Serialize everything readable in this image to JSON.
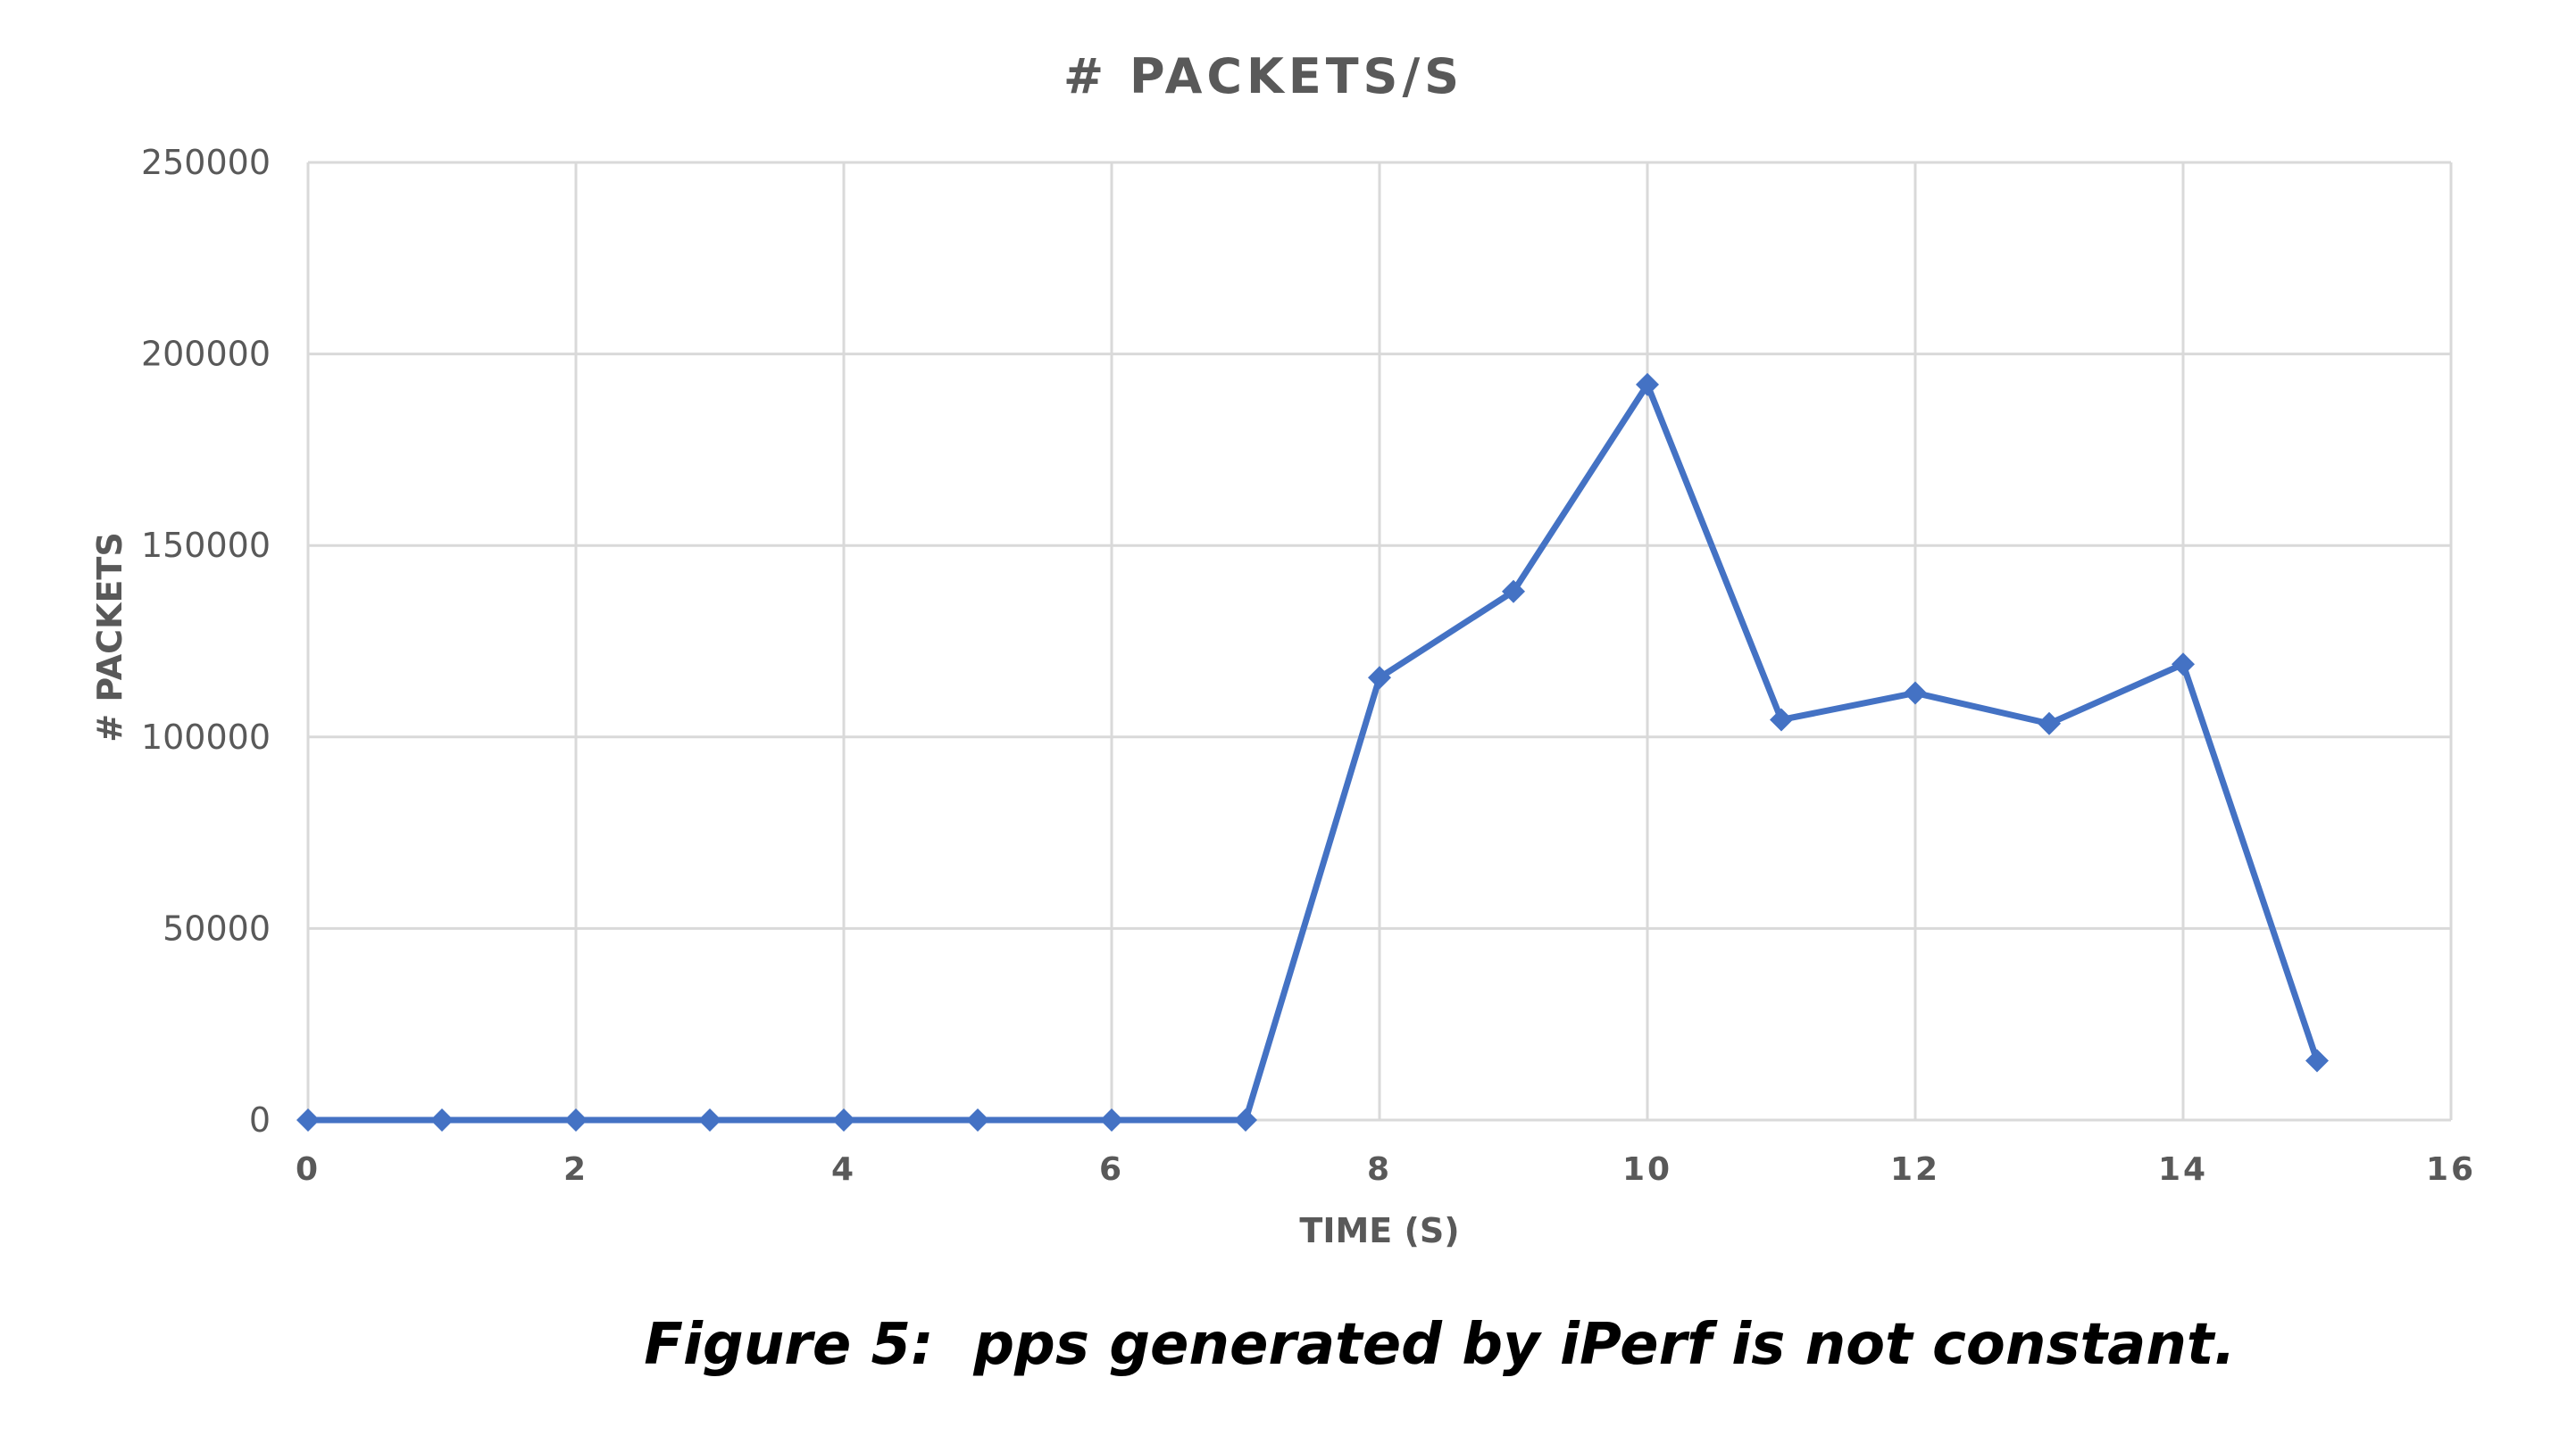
{
  "chart_data": {
    "type": "line",
    "title": "# PACKETS/S",
    "xlabel": "TIME (S)",
    "ylabel": "# PACKETS",
    "xlim": [
      0,
      16
    ],
    "ylim": [
      0,
      250000
    ],
    "x_ticks": [
      0,
      2,
      4,
      6,
      8,
      10,
      12,
      14,
      16
    ],
    "y_ticks": [
      0,
      50000,
      100000,
      150000,
      200000,
      250000
    ],
    "grid": true,
    "legend": "none",
    "series": [
      {
        "color": "#4472c4",
        "marker": "diamond",
        "x": [
          0,
          1,
          2,
          3,
          4,
          5,
          6,
          7,
          8,
          9,
          10,
          11,
          12,
          13,
          14,
          15
        ],
        "y": [
          0,
          0,
          0,
          0,
          0,
          0,
          0,
          0,
          115500,
          138000,
          192000,
          104500,
          111500,
          103500,
          119000,
          15500
        ]
      }
    ]
  },
  "caption": "Figure 5:  pps generated by iPerf is not constant."
}
